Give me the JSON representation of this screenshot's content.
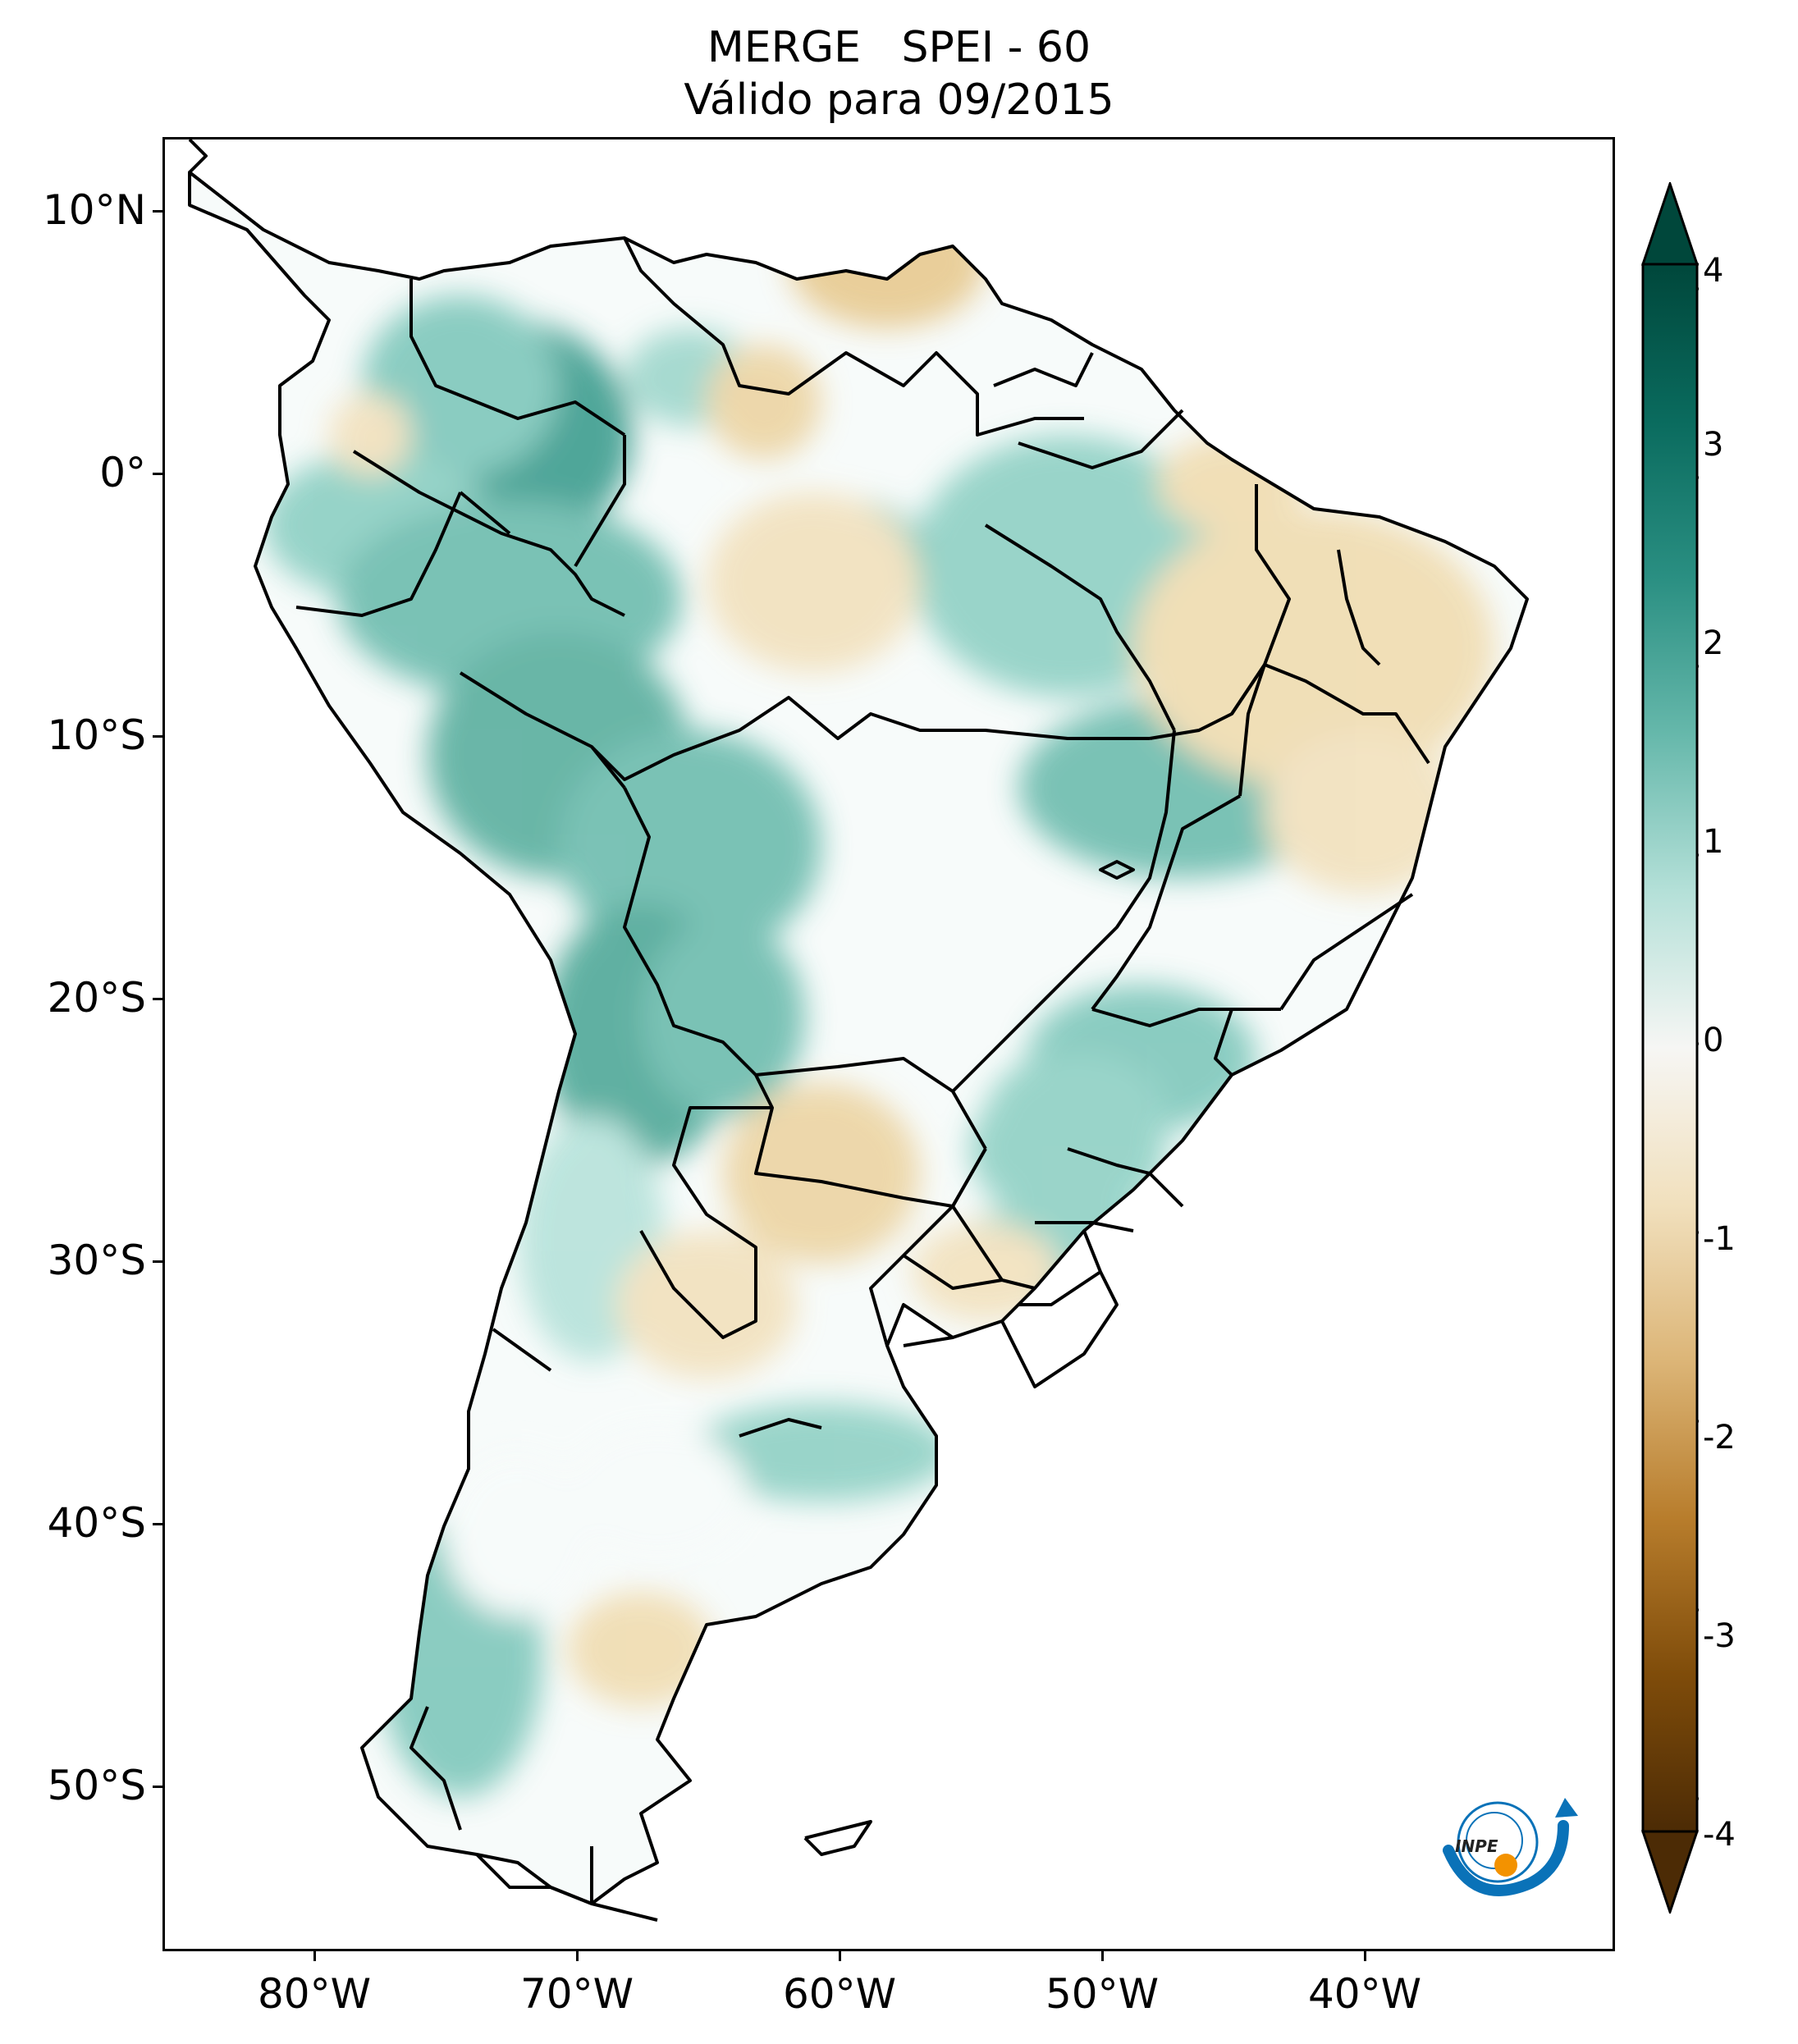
{
  "header": {
    "model": "MERGE",
    "index": "SPEI - 60",
    "valid_text": "Válido para 09/2015"
  },
  "map": {
    "lat_ticks": [
      "10°N",
      "0°",
      "10°S",
      "20°S",
      "30°S",
      "40°S",
      "50°S"
    ],
    "lon_ticks": [
      "80°W",
      "70°W",
      "60°W",
      "50°W",
      "40°W"
    ],
    "lat_range": [
      -56,
      13
    ],
    "lon_range": [
      -85,
      -30
    ],
    "palette": {
      "wet_dark": "#00473b",
      "wet_mid": "#3a9e90",
      "wet_light": "#bfe6df",
      "neutral": "#ffffff",
      "dry_light": "#f2deb2",
      "dry_mid": "#cf9a4e",
      "dry_dark": "#4c2b05",
      "border": "#000000"
    }
  },
  "colorbar": {
    "ticks": [
      "4",
      "3",
      "2",
      "1",
      "0",
      "-1",
      "-2",
      "-3",
      "-4"
    ],
    "min": -4,
    "max": 4,
    "extend": "both",
    "colormap": "BrBG"
  },
  "logo": {
    "text": "INPE",
    "icon": "inpe-logo-icon",
    "colors": {
      "blue": "#0a72b8",
      "orange": "#f39200"
    }
  }
}
